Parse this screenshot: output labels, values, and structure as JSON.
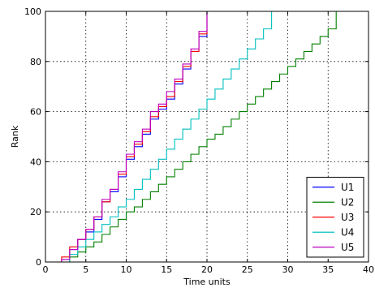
{
  "chart_data": {
    "type": "line",
    "title": "",
    "xlabel": "Time units",
    "ylabel": "Rank",
    "xlim": [
      0,
      40
    ],
    "ylim": [
      0,
      100
    ],
    "xticks": [
      0,
      5,
      10,
      15,
      20,
      25,
      30,
      35,
      40
    ],
    "yticks": [
      0,
      20,
      40,
      60,
      80,
      100
    ],
    "grid": true,
    "legend_position": "bottom-right",
    "line_style": "step",
    "series": [
      {
        "name": "U1",
        "color": "#0000ff",
        "x": [
          2,
          3,
          4,
          5,
          6,
          7,
          8,
          9,
          10,
          11,
          12,
          13,
          14,
          15,
          16,
          17,
          18,
          19,
          20
        ],
        "y": [
          1,
          5,
          9,
          12,
          17,
          24,
          28,
          34,
          41,
          46,
          51,
          57,
          61,
          65,
          71,
          77,
          84,
          90,
          96
        ]
      },
      {
        "name": "U2",
        "color": "#008000",
        "x": [
          2,
          3,
          4,
          5,
          6,
          7,
          8,
          9,
          10,
          11,
          12,
          13,
          14,
          15,
          16,
          17,
          18,
          19,
          20,
          21,
          22,
          23,
          24,
          25,
          26,
          27,
          28,
          29,
          30,
          31,
          32,
          33,
          34,
          35,
          36
        ],
        "y": [
          0,
          2,
          4,
          6,
          8,
          11,
          14,
          17,
          20,
          22,
          25,
          28,
          31,
          34,
          37,
          40,
          43,
          46,
          49,
          51,
          54,
          57,
          60,
          63,
          66,
          69,
          72,
          75,
          78,
          81,
          84,
          87,
          90,
          93,
          96
        ]
      },
      {
        "name": "U3",
        "color": "#ff0000",
        "x": [
          2,
          3,
          4,
          5,
          6,
          7,
          8,
          9,
          10,
          11,
          12,
          13,
          14,
          15,
          16,
          17,
          18,
          19,
          20
        ],
        "y": [
          2,
          6,
          9,
          13,
          18,
          24,
          29,
          35,
          42,
          47,
          52,
          58,
          62,
          66,
          72,
          78,
          84,
          91,
          98
        ]
      },
      {
        "name": "U4",
        "color": "#00bfbf",
        "x": [
          2,
          3,
          4,
          5,
          6,
          7,
          8,
          9,
          10,
          11,
          12,
          13,
          14,
          15,
          16,
          17,
          18,
          19,
          20,
          21,
          22,
          23,
          24,
          25,
          26,
          27,
          28
        ],
        "y": [
          0,
          3,
          6,
          9,
          12,
          15,
          18,
          22,
          25,
          29,
          33,
          37,
          41,
          45,
          49,
          53,
          57,
          61,
          65,
          69,
          73,
          77,
          81,
          85,
          89,
          93,
          97
        ]
      },
      {
        "name": "U5",
        "color": "#bf00bf",
        "x": [
          2,
          3,
          4,
          5,
          6,
          7,
          8,
          9,
          10,
          11,
          12,
          13,
          14,
          15,
          16,
          17,
          18,
          19,
          20
        ],
        "y": [
          1,
          5,
          9,
          13,
          18,
          25,
          29,
          36,
          43,
          48,
          53,
          60,
          63,
          68,
          73,
          79,
          85,
          92,
          99
        ]
      }
    ]
  }
}
